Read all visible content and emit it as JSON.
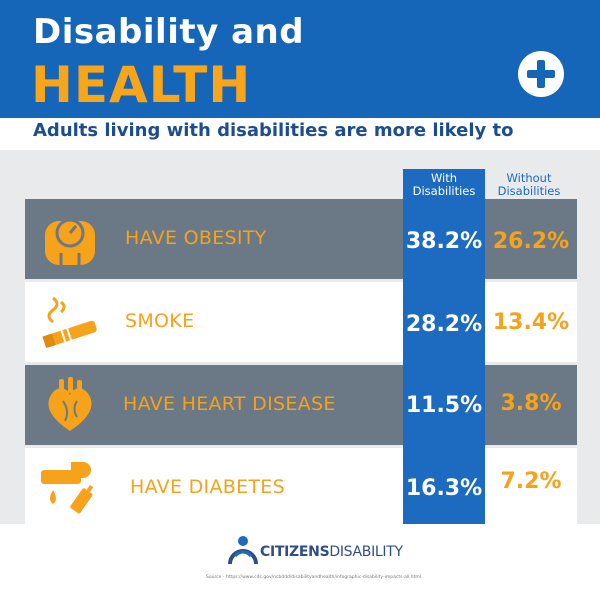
{
  "header": {
    "title_line1": "Disability and",
    "title_line2": "HEALTH",
    "icon": "plus-icon"
  },
  "subtitle": "Adults living with disabilities are more likely to",
  "columns": {
    "with": "With Disabilities",
    "without": "Without Disabilities"
  },
  "rows": [
    {
      "label": "HAVE OBESITY",
      "icon": "scale-icon",
      "with": "38.2%",
      "without": "26.2%"
    },
    {
      "label": "SMOKE",
      "icon": "cigarette-icon",
      "with": "28.2%",
      "without": "13.4%"
    },
    {
      "label": "HAVE HEART DISEASE",
      "icon": "heart-icon",
      "with": "11.5%",
      "without": "3.8%"
    },
    {
      "label": "HAVE DIABETES",
      "icon": "syringe-icon",
      "with": "16.3%",
      "without": "7.2%"
    }
  ],
  "footer": {
    "logo_bold": "CITIZENS",
    "logo_thin": "DISABILITY",
    "source": "Source - https://www.cdc.gov/ncbddd/disabilityandhealth/infographic-disability-impacts-all.html"
  },
  "colors": {
    "header_blue": "#1565b8",
    "accent_orange": "#f7a21b",
    "row_dark": "#6b7885",
    "column_blue": "#1c6bc0"
  }
}
